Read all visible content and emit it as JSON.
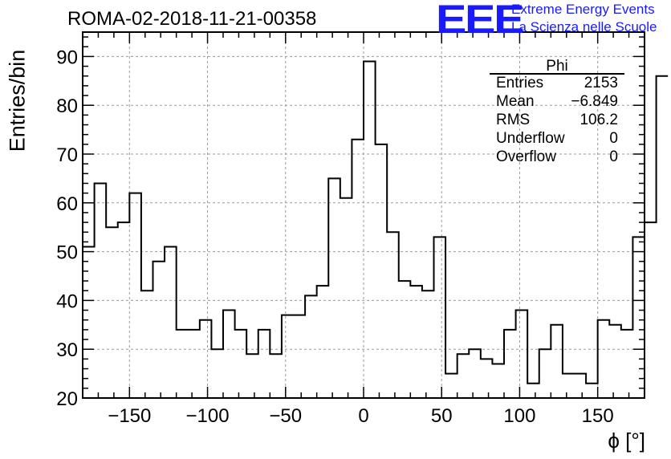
{
  "header": {
    "title": "ROMA-02-2018-11-21-00358",
    "logo_text": "EEE",
    "logo_line1": "Extreme Energy Events",
    "logo_line2": "La Scienza nelle Scuole"
  },
  "stats": {
    "name": "Phi",
    "rows": [
      {
        "label": "Entries",
        "value": "2153"
      },
      {
        "label": "Mean",
        "value": "−6.849"
      },
      {
        "label": "RMS",
        "value": "106.2"
      },
      {
        "label": "Underflow",
        "value": "0"
      },
      {
        "label": "Overflow",
        "value": "0"
      }
    ]
  },
  "colors": {
    "logo": "#1a1aff",
    "grid": "#999999",
    "line": "#000000"
  },
  "chart_data": {
    "type": "histogram",
    "title": "ROMA-02-2018-11-21-00358",
    "xlabel": "ϕ [°]",
    "ylabel": "Entries/bin",
    "xlim": [
      -180,
      180
    ],
    "ylim": [
      20,
      95
    ],
    "grid": true,
    "bin_width": 7.5,
    "xticks": [
      -150,
      -100,
      -50,
      0,
      50,
      100,
      150
    ],
    "xtick_labels": [
      "−150",
      "−100",
      "−50",
      "0",
      "50",
      "100",
      "150"
    ],
    "yticks": [
      20,
      30,
      40,
      50,
      60,
      70,
      80,
      90
    ],
    "ytick_labels": [
      "20",
      "30",
      "40",
      "50",
      "60",
      "70",
      "80",
      "90"
    ],
    "bin_edges_start": -180,
    "values": [
      51,
      64,
      55,
      56,
      62,
      42,
      48,
      51,
      34,
      34,
      36,
      30,
      38,
      34,
      29,
      34,
      29,
      37,
      37,
      41,
      43,
      65,
      61,
      73,
      89,
      72,
      54,
      44,
      43,
      42,
      53,
      25,
      29,
      30,
      28,
      27,
      34,
      38,
      23,
      30,
      35,
      25,
      25,
      23,
      36,
      35,
      34,
      53,
      56,
      86
    ]
  }
}
